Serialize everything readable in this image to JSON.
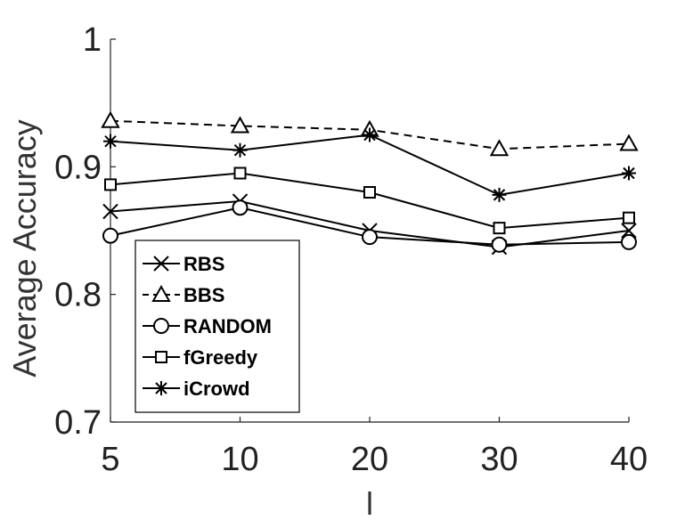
{
  "chart_data": {
    "type": "line",
    "title": "",
    "xlabel": "l",
    "ylabel": "Average Accuracy",
    "categories": [
      "5",
      "10",
      "20",
      "30",
      "40"
    ],
    "ylim": [
      0.7,
      1.0
    ],
    "yticks": [
      "0.7",
      "0.8",
      "0.9",
      "1"
    ],
    "legend_position": "bottom-left",
    "series": [
      {
        "name": "RBS",
        "marker": "x",
        "line": "solid",
        "values": [
          0.865,
          0.873,
          0.85,
          0.837,
          0.85
        ]
      },
      {
        "name": "BBS",
        "marker": "triangle",
        "line": "dashed",
        "values": [
          0.936,
          0.932,
          0.929,
          0.914,
          0.918
        ]
      },
      {
        "name": "RANDOM",
        "marker": "circle",
        "line": "solid",
        "values": [
          0.846,
          0.868,
          0.845,
          0.839,
          0.841
        ]
      },
      {
        "name": "fGreedy",
        "marker": "square",
        "line": "solid",
        "values": [
          0.886,
          0.895,
          0.88,
          0.852,
          0.86
        ]
      },
      {
        "name": "iCrowd",
        "marker": "asterisk",
        "line": "solid",
        "values": [
          0.92,
          0.913,
          0.925,
          0.878,
          0.895
        ]
      }
    ]
  }
}
